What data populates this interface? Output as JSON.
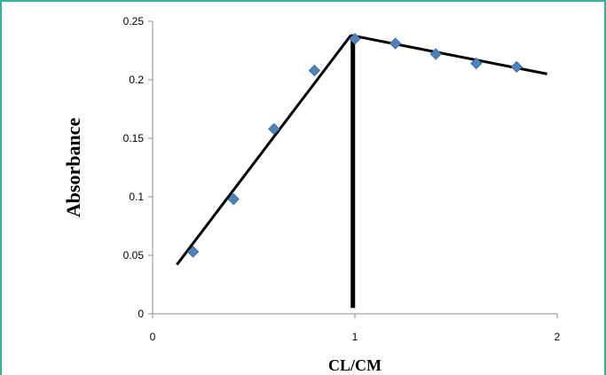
{
  "chart_data": {
    "type": "scatter",
    "title": "",
    "xlabel": "CL/CM",
    "ylabel": "Absorbance",
    "xlim": [
      0,
      2
    ],
    "ylim": [
      0,
      0.25
    ],
    "x_ticks": [
      0,
      1,
      2
    ],
    "y_ticks": [
      0,
      0.05,
      0.1,
      0.15,
      0.2,
      0.25
    ],
    "x_tick_labels": [
      "0",
      "1",
      "2"
    ],
    "y_tick_labels": [
      "0",
      "0.05",
      "0.1",
      "0.15",
      "0.2",
      "0.25"
    ],
    "grid": false,
    "legend": "none",
    "series": [
      {
        "x": [
          0.2,
          0.4,
          0.6,
          0.8,
          1.0,
          1.2,
          1.4,
          1.6,
          1.8
        ],
        "y": [
          0.053,
          0.098,
          0.158,
          0.208,
          0.235,
          0.231,
          0.222,
          0.214,
          0.211
        ],
        "color": "#4f81bd",
        "marker": "diamond"
      }
    ],
    "annotations": [
      {
        "type": "line",
        "x": [
          0.12,
          0.98
        ],
        "y": [
          0.042,
          0.238
        ]
      },
      {
        "type": "line",
        "x": [
          0.98,
          1.95
        ],
        "y": [
          0.238,
          0.205
        ]
      },
      {
        "type": "line",
        "x": [
          0.99,
          0.99
        ],
        "y": [
          0.005,
          0.237
        ]
      }
    ]
  }
}
